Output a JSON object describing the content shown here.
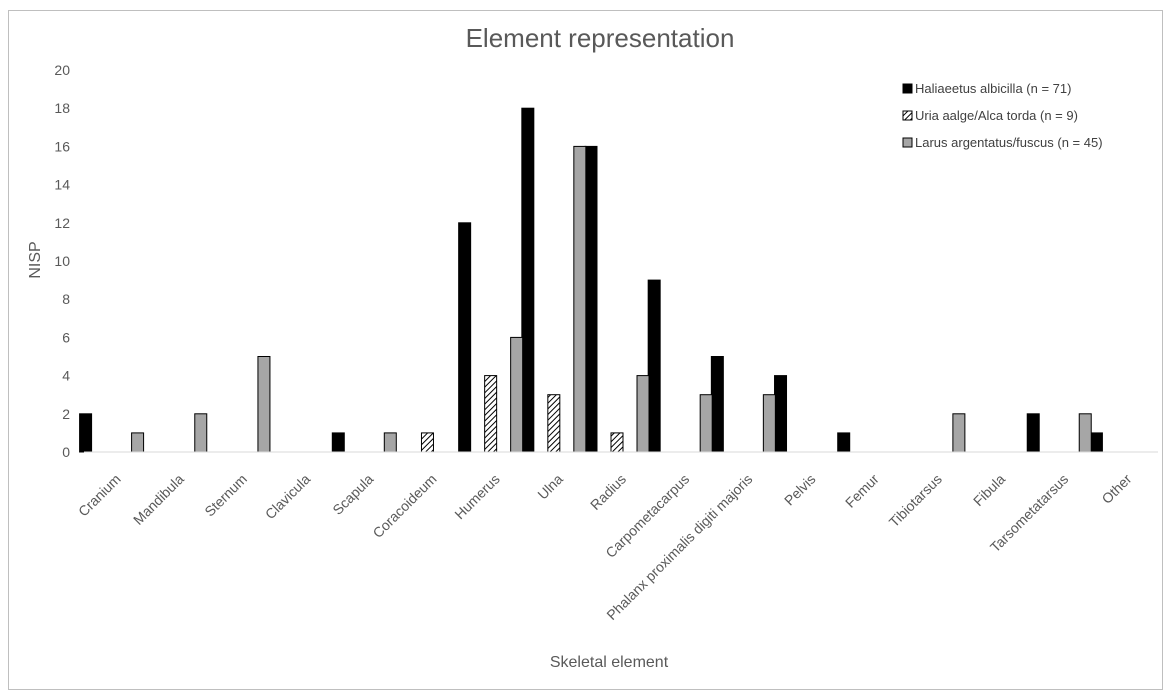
{
  "chart_data": {
    "type": "bar",
    "title": "Element representation",
    "xlabel": "Skeletal element",
    "ylabel": "NISP",
    "ylim": [
      0,
      20
    ],
    "yticks": [
      0,
      2,
      4,
      6,
      8,
      10,
      12,
      14,
      16,
      18,
      20
    ],
    "grid": false,
    "legend_position": "top-right",
    "categories": [
      "Cranium",
      "Mandibula",
      "Sternum",
      "Clavicula",
      "Scapula",
      "Coracoideum",
      "Humerus",
      "Ulna",
      "Radius",
      "Carpometacarpus",
      "Phalanx proximalis digiti majoris",
      "Pelvis",
      "Femur",
      "Tibiotarsus",
      "Fibula",
      "Tarsometatarsus",
      "Other"
    ],
    "series": [
      {
        "name": "Haliaeetus albicilla (n = 71)",
        "fill": "solid",
        "color": "#000000",
        "values": [
          2,
          0,
          0,
          0,
          1,
          0,
          12,
          18,
          16,
          9,
          5,
          4,
          1,
          0,
          0,
          2,
          1
        ]
      },
      {
        "name": "Uria aalge/Alca torda (n = 9)",
        "fill": "hatched",
        "color": "#000000",
        "values": [
          0,
          0,
          0,
          0,
          0,
          1,
          4,
          3,
          1,
          0,
          0,
          0,
          0,
          0,
          0,
          0,
          0
        ]
      },
      {
        "name": "Larus argentatus/fuscus (n = 45)",
        "fill": "solid",
        "color": "#a6a6a6",
        "values": [
          1,
          2,
          5,
          0,
          1,
          0,
          6,
          16,
          4,
          3,
          3,
          0,
          0,
          2,
          0,
          2,
          0
        ]
      }
    ]
  }
}
